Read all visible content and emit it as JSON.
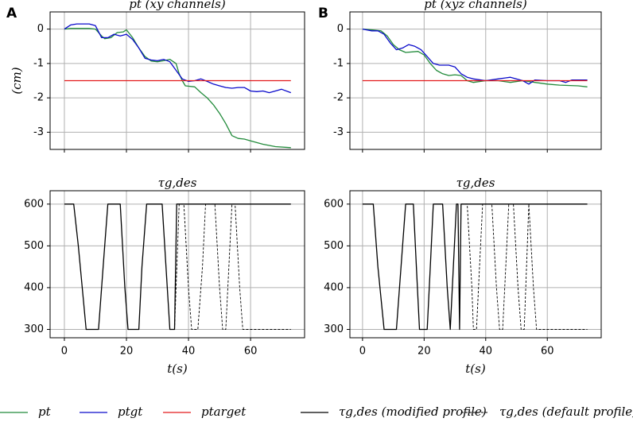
{
  "chart_data": [
    {
      "type": "line",
      "panel": "A",
      "title": "pt (xy channels)",
      "ylabel": "(cm)",
      "xlim": [
        -4.6,
        77.4
      ],
      "ylim": [
        -3.5,
        0.5
      ],
      "xticks": [
        0,
        20,
        40,
        60
      ],
      "xticklabels": false,
      "yticks": [
        0,
        -1,
        -2,
        -3
      ],
      "grid": true,
      "series": [
        {
          "name": "pt",
          "color": "#228b3b",
          "dash": false,
          "x": [
            0,
            2,
            5,
            8,
            10,
            12,
            13,
            15,
            17,
            19,
            20,
            22,
            24,
            26,
            28,
            30,
            32,
            34,
            36,
            37,
            38,
            39,
            42,
            44,
            46,
            48,
            50,
            52,
            54,
            56,
            58,
            60,
            64,
            68,
            73
          ],
          "values": [
            0,
            0.02,
            0.02,
            0.02,
            0,
            -0.2,
            -0.28,
            -0.25,
            -0.1,
            -0.08,
            -0.02,
            -0.25,
            -0.55,
            -0.8,
            -0.93,
            -0.95,
            -0.92,
            -0.88,
            -1.0,
            -1.3,
            -1.5,
            -1.65,
            -1.68,
            -1.85,
            -2.0,
            -2.2,
            -2.45,
            -2.75,
            -3.1,
            -3.18,
            -3.2,
            -3.25,
            -3.35,
            -3.42,
            -3.45
          ]
        },
        {
          "name": "ptgt",
          "color": "#0a0acb",
          "dash": false,
          "x": [
            0,
            2,
            4,
            8,
            10,
            12,
            14,
            16,
            18,
            20,
            22,
            24,
            26,
            28,
            30,
            32,
            34,
            36,
            38,
            40,
            42,
            44,
            46,
            48,
            50,
            52,
            54,
            56,
            58,
            60,
            62,
            64,
            66,
            68,
            70,
            73
          ],
          "values": [
            0,
            0.12,
            0.15,
            0.15,
            0.1,
            -0.25,
            -0.25,
            -0.15,
            -0.2,
            -0.15,
            -0.3,
            -0.55,
            -0.85,
            -0.9,
            -0.92,
            -0.88,
            -0.95,
            -1.2,
            -1.45,
            -1.52,
            -1.5,
            -1.45,
            -1.52,
            -1.6,
            -1.65,
            -1.7,
            -1.72,
            -1.7,
            -1.7,
            -1.8,
            -1.82,
            -1.8,
            -1.85,
            -1.8,
            -1.75,
            -1.85
          ]
        },
        {
          "name": "ptarget",
          "color": "#e31a1c",
          "dash": false,
          "x": [
            0,
            73
          ],
          "values": [
            -1.5,
            -1.5
          ]
        }
      ]
    },
    {
      "type": "line",
      "panel": "B",
      "title": "pt (xyz channels)",
      "xlim": [
        -4.1,
        77.5
      ],
      "ylim": [
        -3.5,
        0.5
      ],
      "xticks": [
        0,
        20,
        40,
        60
      ],
      "xticklabels": false,
      "yticks": [
        0,
        -1,
        -2,
        -3
      ],
      "grid": true,
      "series": [
        {
          "name": "pt",
          "color": "#228b3b",
          "dash": false,
          "x": [
            0,
            3,
            6,
            8,
            10,
            12,
            14,
            18,
            20,
            22,
            24,
            26,
            28,
            30,
            32,
            34,
            36,
            40,
            44,
            48,
            52,
            56,
            60,
            64,
            70,
            73
          ],
          "values": [
            0,
            -0.02,
            -0.05,
            -0.2,
            -0.45,
            -0.6,
            -0.68,
            -0.65,
            -0.75,
            -1.0,
            -1.2,
            -1.3,
            -1.35,
            -1.33,
            -1.35,
            -1.5,
            -1.55,
            -1.5,
            -1.5,
            -1.55,
            -1.5,
            -1.55,
            -1.6,
            -1.63,
            -1.65,
            -1.68
          ]
        },
        {
          "name": "ptgt",
          "color": "#0a0acb",
          "dash": false,
          "x": [
            0,
            3,
            5,
            7,
            9,
            11,
            13,
            15,
            17,
            19,
            21,
            23,
            25,
            28,
            30,
            32,
            34,
            36,
            40,
            44,
            48,
            52,
            54,
            56,
            60,
            64,
            66,
            68,
            73
          ],
          "values": [
            0,
            -0.05,
            -0.05,
            -0.15,
            -0.4,
            -0.6,
            -0.55,
            -0.45,
            -0.5,
            -0.6,
            -0.8,
            -1.0,
            -1.05,
            -1.05,
            -1.1,
            -1.3,
            -1.4,
            -1.45,
            -1.5,
            -1.45,
            -1.4,
            -1.5,
            -1.6,
            -1.48,
            -1.5,
            -1.5,
            -1.55,
            -1.48,
            -1.48
          ]
        },
        {
          "name": "ptarget",
          "color": "#e31a1c",
          "dash": false,
          "x": [
            0,
            73
          ],
          "values": [
            -1.5,
            -1.5
          ]
        }
      ]
    },
    {
      "type": "line",
      "title": "τg,des",
      "xlabel": "t(s)",
      "xlim": [
        -4.6,
        77.4
      ],
      "ylim": [
        280,
        632
      ],
      "xticks": [
        0,
        20,
        40,
        60
      ],
      "xticklabels": true,
      "yticks": [
        300,
        400,
        500,
        600
      ],
      "grid": true,
      "series": [
        {
          "name": "τg,des (modified profile)",
          "color": "#000000",
          "dash": false,
          "x": [
            0,
            3,
            4.5,
            6,
            7,
            11,
            12.5,
            14,
            18,
            19.5,
            20.5,
            24,
            25,
            26.5,
            31.5,
            33,
            34,
            35.5,
            36.2,
            73
          ],
          "values": [
            600,
            600,
            500,
            380,
            300,
            300,
            450,
            600,
            600,
            400,
            300,
            300,
            450,
            600,
            600,
            420,
            300,
            300,
            600,
            600
          ]
        },
        {
          "name": "τg,des (default profile)",
          "color": "#000000",
          "dash": true,
          "x": [
            35.5,
            37,
            38.5,
            40,
            41,
            43,
            44.5,
            45.5,
            48.5,
            50,
            51,
            52,
            53,
            54,
            55,
            56.5,
            57.5,
            73
          ],
          "values": [
            300,
            600,
            600,
            400,
            300,
            300,
            450,
            600,
            600,
            400,
            300,
            300,
            450,
            600,
            600,
            400,
            300,
            300
          ]
        }
      ]
    },
    {
      "type": "line",
      "title": "τg,des",
      "xlabel": "t(s)",
      "xlim": [
        -4.1,
        77.5
      ],
      "ylim": [
        280,
        632
      ],
      "xticks": [
        0,
        20,
        40,
        60
      ],
      "xticklabels": true,
      "yticks": [
        300,
        400,
        500,
        600
      ],
      "grid": true,
      "series": [
        {
          "name": "τg,des (modified profile)",
          "color": "#000000",
          "dash": false,
          "x": [
            0,
            3.5,
            5,
            7,
            11,
            12.5,
            14,
            16.5,
            17.5,
            18.5,
            21,
            22,
            23,
            26,
            27.5,
            28.5,
            29.5,
            30.5,
            31,
            31.5,
            32,
            73
          ],
          "values": [
            600,
            600,
            450,
            300,
            300,
            450,
            600,
            600,
            450,
            300,
            300,
            450,
            600,
            600,
            400,
            300,
            450,
            600,
            600,
            300,
            600,
            600
          ]
        },
        {
          "name": "τg,des (default profile)",
          "color": "#000000",
          "dash": true,
          "x": [
            32,
            34,
            35.5,
            36,
            37,
            38,
            39,
            42,
            43.5,
            44.5,
            45.5,
            46.5,
            47.5,
            49,
            50.5,
            51.5,
            52.5,
            53.5,
            54,
            55.5,
            56.5,
            73
          ],
          "values": [
            600,
            600,
            400,
            300,
            300,
            450,
            600,
            600,
            400,
            300,
            300,
            450,
            600,
            600,
            400,
            300,
            300,
            500,
            600,
            400,
            300,
            300
          ]
        }
      ]
    }
  ]
}
